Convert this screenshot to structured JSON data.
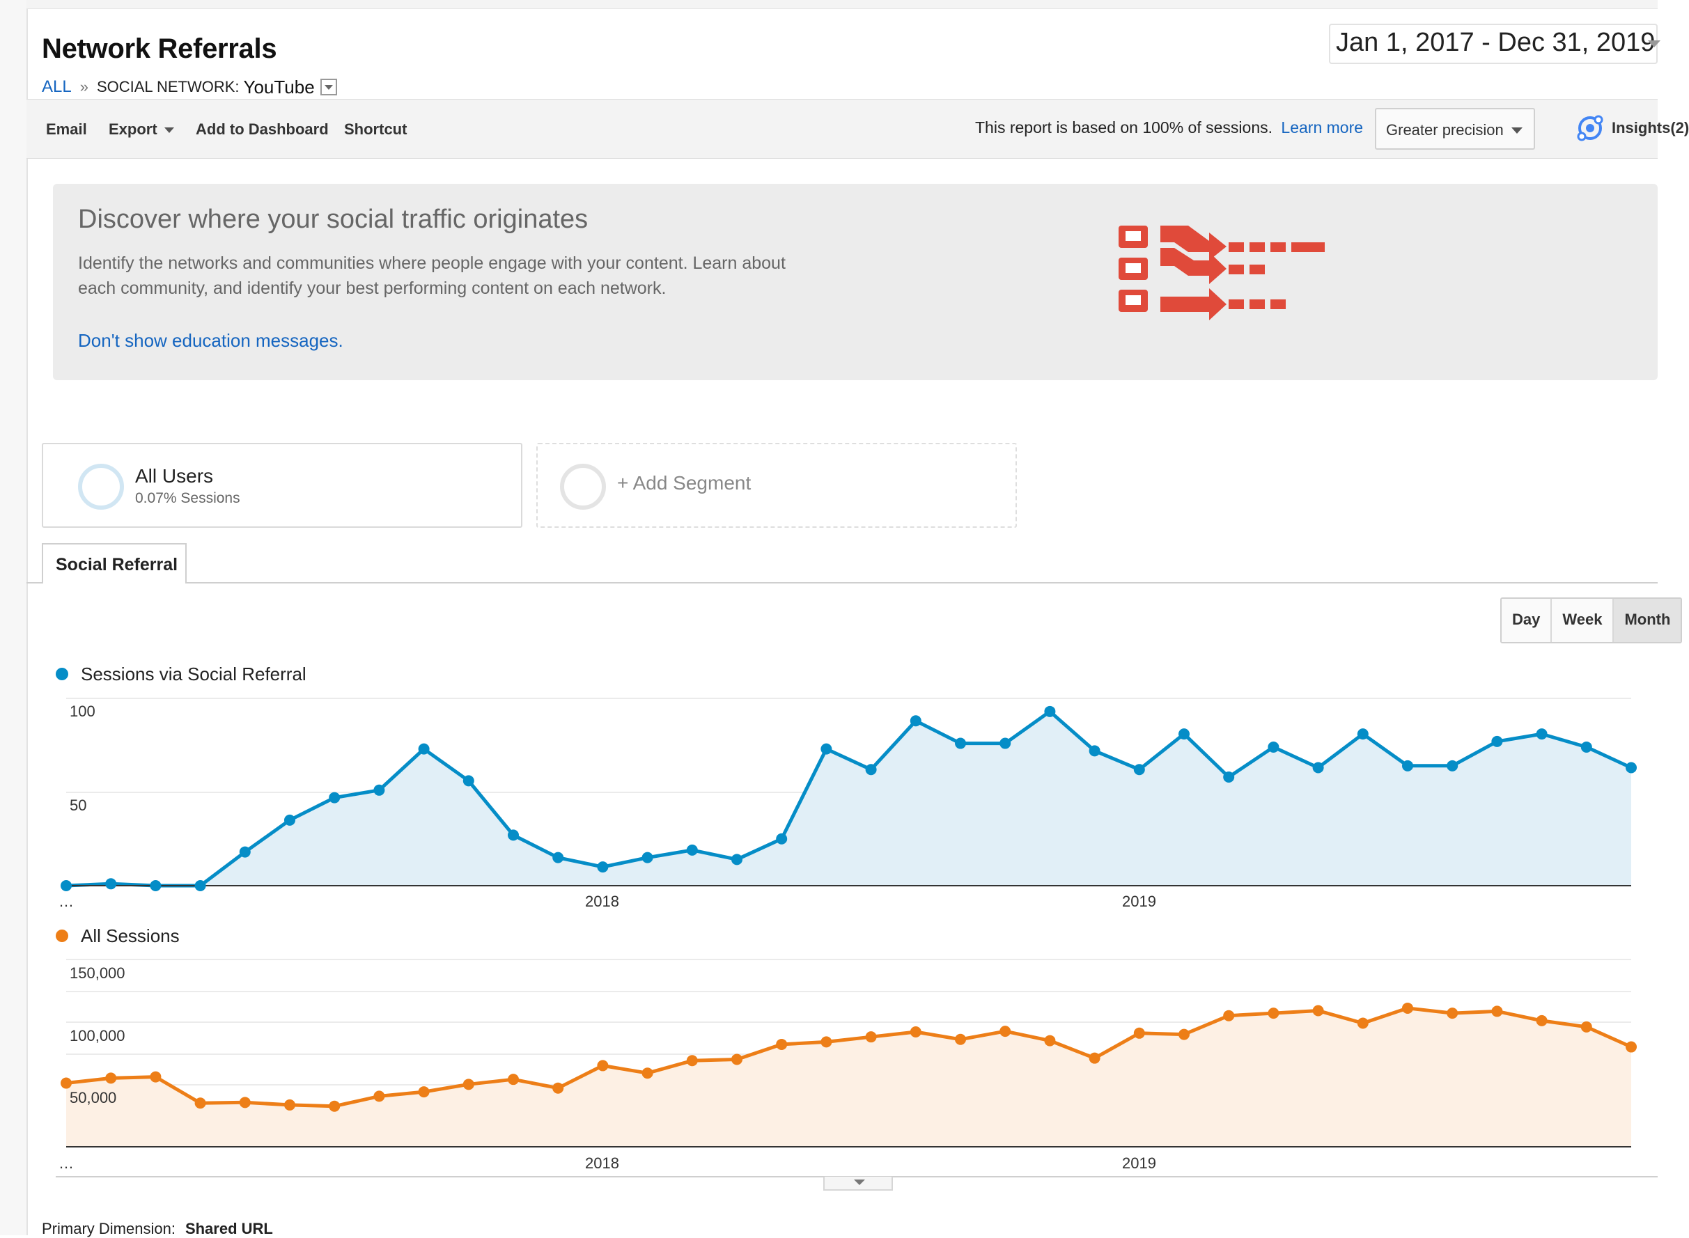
{
  "header": {
    "title": "Network Referrals",
    "date_range": "Jan 1, 2017 - Dec 31, 2019"
  },
  "breadcrumb": {
    "root": "ALL",
    "separator": "»",
    "key": "SOCIAL NETWORK:",
    "value": "YouTube"
  },
  "toolbar": {
    "email": "Email",
    "export": "Export",
    "add_to_dashboard": "Add to Dashboard",
    "shortcut": "Shortcut",
    "sampling_text": "This report is based on 100% of sessions.",
    "learn_more": "Learn more",
    "precision": "Greater precision",
    "insights": "Insights(2)"
  },
  "education": {
    "heading": "Discover where your social traffic originates",
    "body": "Identify the networks and communities where people engage with your content. Learn about each community, and identify your best performing content on each network.",
    "dismiss": "Don't show education messages."
  },
  "segments": {
    "active": {
      "name": "All Users",
      "detail": "0.07% Sessions"
    },
    "add": "+ Add Segment"
  },
  "tab": {
    "label": "Social Referral"
  },
  "period": {
    "day": "Day",
    "week": "Week",
    "month": "Month"
  },
  "colors": {
    "sessions_social": "#058dc7",
    "all_sessions": "#ed7e17",
    "link": "#1565c0",
    "education_art": "#e04a3a"
  },
  "chart_data": [
    {
      "type": "area",
      "legend": "Sessions via Social Referral",
      "x_labels": [
        "…",
        "2018",
        "2019"
      ],
      "y_ticks": [
        "100",
        "50"
      ],
      "ylim": [
        0,
        100
      ],
      "grid": true,
      "x": [
        "2017-01",
        "2017-02",
        "2017-03",
        "2017-04",
        "2017-05",
        "2017-06",
        "2017-07",
        "2017-08",
        "2017-09",
        "2017-10",
        "2017-11",
        "2017-12",
        "2018-01",
        "2018-02",
        "2018-03",
        "2018-04",
        "2018-05",
        "2018-06",
        "2018-07",
        "2018-08",
        "2018-09",
        "2018-10",
        "2018-11",
        "2018-12",
        "2019-01",
        "2019-02",
        "2019-03",
        "2019-04",
        "2019-05",
        "2019-06",
        "2019-07",
        "2019-08",
        "2019-09",
        "2019-10",
        "2019-11",
        "2019-12"
      ],
      "series": [
        {
          "name": "Sessions via Social Referral",
          "values": [
            0,
            1,
            0,
            0,
            18,
            35,
            47,
            51,
            73,
            56,
            27,
            15,
            10,
            15,
            19,
            14,
            25,
            73,
            62,
            88,
            76,
            76,
            93,
            72,
            62,
            81,
            58,
            74,
            63,
            81,
            64,
            64,
            77,
            81,
            74,
            63
          ]
        }
      ]
    },
    {
      "type": "area",
      "legend": "All Sessions",
      "x_labels": [
        "…",
        "2018",
        "2019"
      ],
      "y_ticks": [
        "150,000",
        "100,000",
        "50,000"
      ],
      "ylim": [
        0,
        150000
      ],
      "grid": true,
      "x": [
        "2017-01",
        "2017-02",
        "2017-03",
        "2017-04",
        "2017-05",
        "2017-06",
        "2017-07",
        "2017-08",
        "2017-09",
        "2017-10",
        "2017-11",
        "2017-12",
        "2018-01",
        "2018-02",
        "2018-03",
        "2018-04",
        "2018-05",
        "2018-06",
        "2018-07",
        "2018-08",
        "2018-09",
        "2018-10",
        "2018-11",
        "2018-12",
        "2019-01",
        "2019-02",
        "2019-03",
        "2019-04",
        "2019-05",
        "2019-06",
        "2019-07",
        "2019-08",
        "2019-09",
        "2019-10",
        "2019-11",
        "2019-12"
      ],
      "series": [
        {
          "name": "All Sessions",
          "values": [
            51000,
            55000,
            56000,
            35000,
            35500,
            33500,
            32500,
            40500,
            44000,
            50000,
            54000,
            47000,
            65000,
            59000,
            69000,
            70000,
            82000,
            84000,
            88000,
            92000,
            86000,
            92500,
            85000,
            71000,
            91000,
            90000,
            105000,
            107000,
            109000,
            99000,
            111000,
            107000,
            108500,
            101000,
            96000,
            80000
          ]
        }
      ]
    }
  ],
  "footer": {
    "primary_dimension_label": "Primary Dimension:",
    "primary_dimension_value": "Shared URL"
  }
}
